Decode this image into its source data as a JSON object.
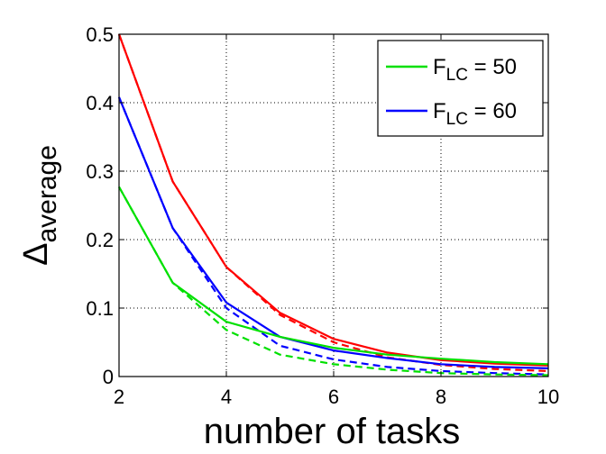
{
  "chart_data": {
    "type": "line",
    "xlabel": "number of tasks",
    "ylabel": {
      "symbol": "Δ",
      "subscript": "average"
    },
    "xlim": [
      2,
      10
    ],
    "ylim": [
      0,
      0.5
    ],
    "xticks": [
      2,
      4,
      6,
      8,
      10
    ],
    "yticks": [
      0,
      0.1,
      0.2,
      0.3,
      0.4,
      0.5
    ],
    "xtick_labels": [
      "2",
      "4",
      "6",
      "8",
      "10"
    ],
    "ytick_labels": [
      "0",
      "0.1",
      "0.2",
      "0.3",
      "0.4",
      "0.5"
    ],
    "grid": true,
    "legend_position": "top-right",
    "legend": [
      {
        "main": "F",
        "sub": "LC",
        "rest": " = 50",
        "color": "#00e000"
      },
      {
        "main": "F",
        "sub": "LC",
        "rest": " = 60",
        "color": "#0000ff"
      }
    ],
    "x": [
      2,
      3,
      4,
      5,
      6,
      7,
      8,
      9,
      10
    ],
    "series": [
      {
        "color": "#ff0000",
        "style": "solid",
        "values": [
          0.5,
          0.285,
          0.16,
          0.093,
          0.055,
          0.035,
          0.024,
          0.019,
          0.016
        ]
      },
      {
        "color": "#ff0000",
        "style": "dashed",
        "values": [
          0.5,
          0.285,
          0.16,
          0.09,
          0.05,
          0.028,
          0.017,
          0.011,
          0.008
        ]
      },
      {
        "color": "#0000ff",
        "style": "solid",
        "values": [
          0.408,
          0.217,
          0.108,
          0.058,
          0.038,
          0.027,
          0.018,
          0.014,
          0.012
        ]
      },
      {
        "color": "#0000ff",
        "style": "dashed",
        "values": [
          0.408,
          0.217,
          0.1,
          0.045,
          0.025,
          0.014,
          0.008,
          0.005,
          0.003
        ]
      },
      {
        "color": "#00e000",
        "style": "solid",
        "values": [
          0.277,
          0.137,
          0.08,
          0.058,
          0.042,
          0.032,
          0.026,
          0.021,
          0.018
        ]
      },
      {
        "color": "#00e000",
        "style": "dashed",
        "values": [
          0.277,
          0.137,
          0.068,
          0.032,
          0.018,
          0.01,
          0.005,
          0.003,
          0.002
        ]
      }
    ]
  }
}
